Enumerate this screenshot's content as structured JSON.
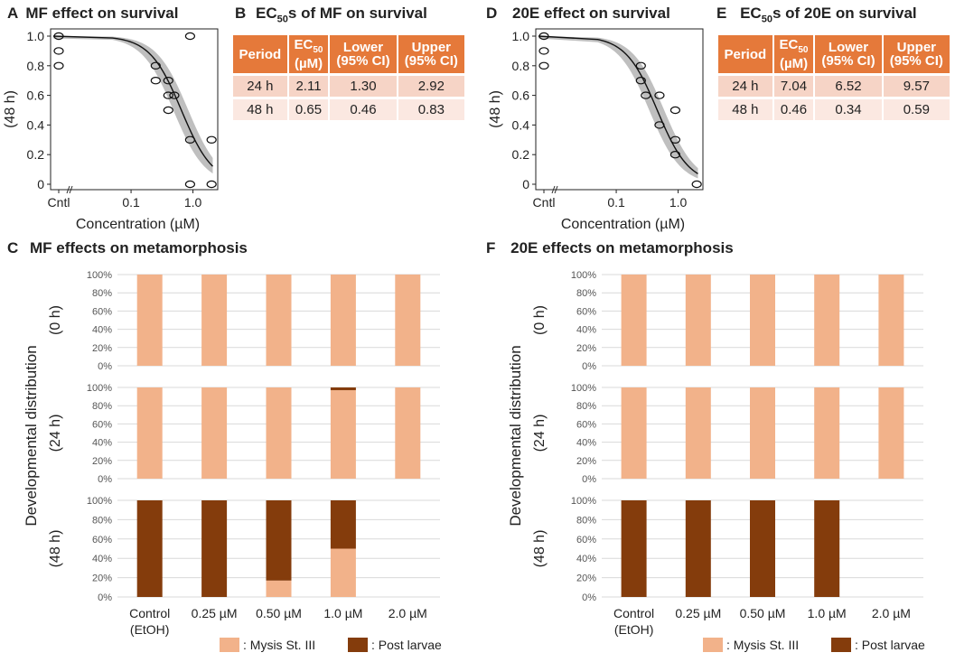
{
  "panels": {
    "A": {
      "letter": "A",
      "title": "MF effect on survival"
    },
    "B": {
      "letter": "B",
      "title_pre": "EC",
      "title_sub": "50",
      "title_post": "s of MF on survival"
    },
    "C": {
      "letter": "C",
      "title": "MF effects on metamorphosis"
    },
    "D": {
      "letter": "D",
      "title": "20E effect on survival"
    },
    "E": {
      "letter": "E",
      "title_pre": "EC",
      "title_sub": "50",
      "title_post": "s of 20E on survival"
    },
    "F": {
      "letter": "F",
      "title": "20E effects on metamorphosis"
    }
  },
  "ec50_tables": [
    {
      "id": "mf",
      "headers": {
        "period": "Period",
        "ec_main": "EC",
        "ec_sub": "50",
        "ec_unit": "(µM)",
        "lower": "Lower",
        "lower_ci": "(95% CI)",
        "upper": "Upper",
        "upper_ci": "(95% CI)"
      },
      "rows": [
        {
          "period": "24 h",
          "ec50": "2.11",
          "lower": "1.30",
          "upper": "2.92"
        },
        {
          "period": "48 h",
          "ec50": "0.65",
          "lower": "0.46",
          "upper": "0.83"
        }
      ]
    },
    {
      "id": "20e",
      "headers": {
        "period": "Period",
        "ec_main": "EC",
        "ec_sub": "50",
        "ec_unit": "(µM)",
        "lower": "Lower",
        "lower_ci": "(95% CI)",
        "upper": "Upper",
        "upper_ci": "(95% CI)"
      },
      "rows": [
        {
          "period": "24 h",
          "ec50": "7.04",
          "lower": "6.52",
          "upper": "9.57"
        },
        {
          "period": "48 h",
          "ec50": "0.46",
          "lower": "0.34",
          "upper": "0.59"
        }
      ]
    }
  ],
  "colors": {
    "mysis": "#f2b28a",
    "post_larvae": "#843c0c",
    "band": "#bfbfbf",
    "grid": "#d9d9d9",
    "table_header": "#e5793a"
  },
  "chart_data": [
    {
      "id": "A",
      "type": "scatter",
      "title": "MF effect on survival",
      "xlabel": "Concentration (µM)",
      "ylabel": "(48 h)",
      "xscale": "log",
      "xlim": [
        0.012,
        2.2
      ],
      "ylim": [
        0,
        1.0
      ],
      "x_ticks": [
        "Cntl",
        "0.1",
        "1.0"
      ],
      "y_ticks": [
        "0",
        "0.2",
        "0.4",
        "0.6",
        "0.8",
        "1.0"
      ],
      "ec50": 0.65,
      "hill": 1.7,
      "points": [
        {
          "x": "Cntl",
          "y": 1.0
        },
        {
          "x": "Cntl",
          "y": 0.9
        },
        {
          "x": "Cntl",
          "y": 0.8
        },
        {
          "x": 0.25,
          "y": 0.8
        },
        {
          "x": 0.25,
          "y": 0.7
        },
        {
          "x": 0.4,
          "y": 0.7
        },
        {
          "x": 0.4,
          "y": 0.6
        },
        {
          "x": 0.5,
          "y": 0.6
        },
        {
          "x": 0.4,
          "y": 0.5
        },
        {
          "x": 0.9,
          "y": 1.0
        },
        {
          "x": 0.9,
          "y": 0.3
        },
        {
          "x": 0.9,
          "y": 0.0
        },
        {
          "x": 2.0,
          "y": 0.3
        },
        {
          "x": 2.0,
          "y": 0.0
        }
      ]
    },
    {
      "id": "D",
      "type": "scatter",
      "title": "20E effect on survival",
      "xlabel": "Concentration (µM)",
      "ylabel": "(48 h)",
      "xscale": "log",
      "xlim": [
        0.012,
        2.2
      ],
      "ylim": [
        0,
        1.0
      ],
      "x_ticks": [
        "Cntl",
        "0.1",
        "1.0"
      ],
      "y_ticks": [
        "0",
        "0.2",
        "0.4",
        "0.6",
        "0.8",
        "1.0"
      ],
      "ec50": 0.46,
      "hill": 1.7,
      "points": [
        {
          "x": "Cntl",
          "y": 1.0
        },
        {
          "x": "Cntl",
          "y": 0.9
        },
        {
          "x": "Cntl",
          "y": 0.8
        },
        {
          "x": 0.25,
          "y": 0.8
        },
        {
          "x": 0.25,
          "y": 0.7
        },
        {
          "x": 0.3,
          "y": 0.6
        },
        {
          "x": 0.5,
          "y": 0.6
        },
        {
          "x": 0.5,
          "y": 0.4
        },
        {
          "x": 0.9,
          "y": 0.5
        },
        {
          "x": 0.9,
          "y": 0.3
        },
        {
          "x": 0.9,
          "y": 0.2
        },
        {
          "x": 2.0,
          "y": 0.0
        }
      ]
    },
    {
      "id": "C",
      "type": "bar",
      "stacked": true,
      "title": "MF effects on metamorphosis",
      "ylabel": "Developmental distribution",
      "categories": [
        "Control (EtOH)",
        "0.25 µM",
        "0.50 µM",
        "1.0 µM",
        "2.0 µM"
      ],
      "y_ticks": [
        "0%",
        "20%",
        "40%",
        "60%",
        "80%",
        "100%"
      ],
      "legend": [
        {
          "key": "mysis",
          "label": ": Mysis St. III"
        },
        {
          "key": "post",
          "label": ": Post larvae"
        }
      ],
      "rows": [
        {
          "label": "(0 h)",
          "mysis": [
            100,
            100,
            100,
            100,
            100
          ],
          "post": [
            0,
            0,
            0,
            0,
            0
          ]
        },
        {
          "label": "(24 h)",
          "mysis": [
            100,
            100,
            100,
            97,
            100
          ],
          "post": [
            0,
            0,
            0,
            3,
            0
          ]
        },
        {
          "label": "(48 h)",
          "mysis": [
            0,
            0,
            17,
            50,
            0
          ],
          "post": [
            100,
            100,
            83,
            50,
            0
          ]
        }
      ]
    },
    {
      "id": "F",
      "type": "bar",
      "stacked": true,
      "title": "20E effects on metamorphosis",
      "ylabel": "Developmental distribution",
      "categories": [
        "Control (EtOH)",
        "0.25 µM",
        "0.50 µM",
        "1.0 µM",
        "2.0 µM"
      ],
      "y_ticks": [
        "0%",
        "20%",
        "40%",
        "60%",
        "80%",
        "100%"
      ],
      "legend": [
        {
          "key": "mysis",
          "label": ": Mysis St. III"
        },
        {
          "key": "post",
          "label": ": Post larvae"
        }
      ],
      "rows": [
        {
          "label": "(0 h)",
          "mysis": [
            100,
            100,
            100,
            100,
            100
          ],
          "post": [
            0,
            0,
            0,
            0,
            0
          ]
        },
        {
          "label": "(24 h)",
          "mysis": [
            100,
            100,
            100,
            100,
            100
          ],
          "post": [
            0,
            0,
            0,
            0,
            0
          ]
        },
        {
          "label": "(48 h)",
          "mysis": [
            0,
            0,
            0,
            0,
            0
          ],
          "post": [
            100,
            100,
            100,
            100,
            0
          ]
        }
      ]
    }
  ]
}
